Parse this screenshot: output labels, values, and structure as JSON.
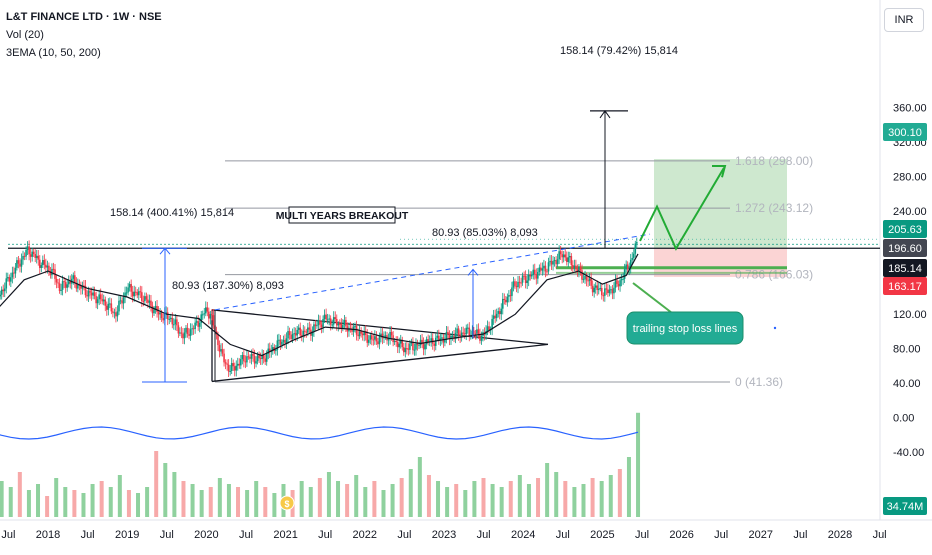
{
  "header": {
    "symbol_line": "L&T FINANCE LTD · 1W · NSE",
    "volume_line": "Vol (20)",
    "ema_line": "3EMA (10, 50, 200)",
    "currency": "INR"
  },
  "chart_data": {
    "type": "line",
    "title": "L&T FINANCE LTD · 1W · NSE",
    "x_axis_ticks": [
      "Jul",
      "2018",
      "Jul",
      "2019",
      "Jul",
      "2020",
      "Jul",
      "2021",
      "Jul",
      "2022",
      "Jul",
      "2023",
      "Jul",
      "2024",
      "Jul",
      "2025",
      "Jul",
      "2026",
      "Jul",
      "2027",
      "Jul",
      "2028",
      "Jul"
    ],
    "x_axis_tick_years": [
      2017.5,
      2018,
      2018.5,
      2019,
      2019.5,
      2020,
      2020.5,
      2021,
      2021.5,
      2022,
      2022.5,
      2023,
      2023.5,
      2024,
      2024.5,
      2025,
      2025.5,
      2026,
      2026.5,
      2027,
      2027.5,
      2028,
      2028.5
    ],
    "y_axis_ticks": [
      "360.00",
      "320.00",
      "280.00",
      "240.00",
      "200.00",
      "160.00",
      "120.00",
      "80.00",
      "40.00",
      "0.00",
      "-40.00"
    ],
    "y_axis_tick_values": [
      360,
      320,
      280,
      240,
      200,
      160,
      120,
      80,
      40,
      0,
      -40
    ],
    "price_line": {
      "x": [
        2017.3,
        2017.6,
        2017.75,
        2017.9,
        2018.05,
        2018.15,
        2018.3,
        2018.5,
        2018.7,
        2018.85,
        2019.0,
        2019.2,
        2019.4,
        2019.55,
        2019.7,
        2019.85,
        2020.0,
        2020.05,
        2020.2,
        2020.3,
        2020.5,
        2020.7,
        2020.9,
        2021.1,
        2021.3,
        2021.5,
        2021.7,
        2021.9,
        2022.1,
        2022.3,
        2022.5,
        2022.7,
        2022.9,
        2023.1,
        2023.3,
        2023.5,
        2023.7,
        2023.9,
        2024.1,
        2024.3,
        2024.5,
        2024.6,
        2024.75,
        2024.9,
        2025.05,
        2025.2,
        2025.35,
        2025.45
      ],
      "y": [
        130,
        175,
        195,
        180,
        170,
        150,
        160,
        145,
        135,
        120,
        150,
        140,
        120,
        115,
        95,
        105,
        125,
        120,
        70,
        55,
        70,
        68,
        85,
        98,
        100,
        115,
        108,
        100,
        90,
        95,
        80,
        85,
        90,
        95,
        100,
        95,
        125,
        155,
        165,
        175,
        190,
        180,
        165,
        150,
        145,
        155,
        180,
        205
      ]
    },
    "ema_line": {
      "x": [
        2017.3,
        2017.7,
        2018.0,
        2018.5,
        2019.0,
        2019.5,
        2019.9,
        2020.3,
        2020.7,
        2021.1,
        2021.5,
        2021.9,
        2022.3,
        2022.7,
        2023.1,
        2023.5,
        2023.9,
        2024.3,
        2024.7,
        2025.0,
        2025.3,
        2025.45
      ],
      "y": [
        120,
        160,
        170,
        150,
        140,
        120,
        115,
        85,
        72,
        90,
        105,
        102,
        92,
        86,
        92,
        97,
        120,
        160,
        170,
        155,
        165,
        190
      ]
    },
    "volume_millions": [
      8,
      12,
      10,
      15,
      9,
      11,
      7,
      13,
      10,
      9,
      8,
      11,
      12,
      10,
      14,
      9,
      8,
      10,
      22,
      18,
      15,
      12,
      11,
      9,
      10,
      13,
      11,
      10,
      9,
      12,
      10,
      8,
      11,
      9,
      12,
      10,
      13,
      15,
      12,
      11,
      14,
      10,
      12,
      9,
      11,
      13,
      16,
      20,
      14,
      12,
      10,
      11,
      9,
      12,
      13,
      11,
      10,
      12,
      14,
      11,
      13,
      18,
      15,
      12,
      10,
      11,
      13,
      12,
      14,
      16,
      20,
      34.74
    ],
    "volume_avg_millions": 10,
    "annotations": [
      {
        "label": "158.14 (400.41%) 15,814"
      },
      {
        "label": "80.93 (187.30%) 8,093"
      },
      {
        "label": "80.93 (85.03%) 8,093"
      },
      {
        "label": "158.14 (79.42%) 15,814"
      },
      {
        "label": "MULTI YEARS BREAKOUT"
      },
      {
        "label": "trailing stop loss lines"
      }
    ],
    "fib_levels": [
      {
        "label": "1.618 (298.00)",
        "value": 298
      },
      {
        "label": "1.272 (243.12)",
        "value": 243.12
      },
      {
        "label": "0.786 (166.03)",
        "value": 166.03
      },
      {
        "label": "0 (41.36)",
        "value": 41.36
      }
    ],
    "price_labels": [
      {
        "text": "300.10",
        "value": 300.1,
        "color": "#22ab94"
      },
      {
        "text": "205.63",
        "value": 205.63,
        "color": "#089981"
      },
      {
        "text": "196.60",
        "value": 196.6,
        "color": "#434651"
      },
      {
        "text": "185.14",
        "value": 185.14,
        "color": "#131722"
      },
      {
        "text": "163.17",
        "value": 163.17,
        "color": "#f23645"
      }
    ],
    "volume_label": {
      "text": "34.74M",
      "color": "#089981"
    },
    "resistance_level": 196.6,
    "target_zone": [
      196.6,
      300.1
    ],
    "stop_zone": [
      163.17,
      196.6
    ],
    "triangle": {
      "upper": [
        [
          2020.0,
          125
        ],
        [
          2024.0,
          85
        ]
      ],
      "lower": [
        [
          2020.0,
          42
        ],
        [
          2024.0,
          85
        ]
      ]
    }
  }
}
